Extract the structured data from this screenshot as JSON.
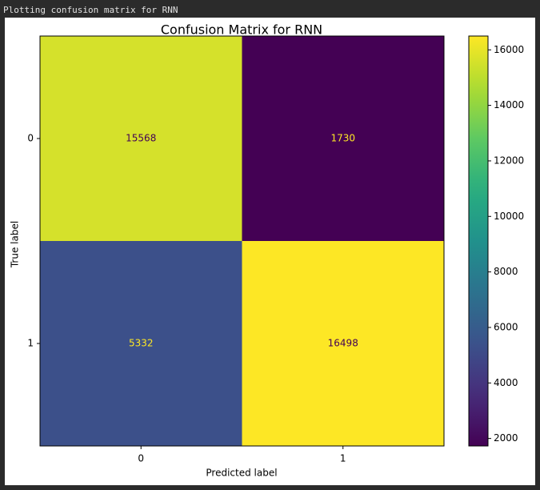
{
  "console": {
    "lines": [
      "Plotting confusion matrix for RNN"
    ]
  },
  "chart_data": {
    "type": "heatmap",
    "title": "Confusion Matrix for RNN",
    "xlabel": "Predicted label",
    "ylabel": "True label",
    "x_categories": [
      "0",
      "1"
    ],
    "y_categories": [
      "0",
      "1"
    ],
    "values": [
      [
        15568,
        1730
      ],
      [
        5332,
        16498
      ]
    ],
    "colormap": "viridis",
    "clim": [
      1730,
      16498
    ],
    "cticks": [
      2000,
      4000,
      6000,
      8000,
      10000,
      12000,
      14000,
      16000
    ]
  }
}
